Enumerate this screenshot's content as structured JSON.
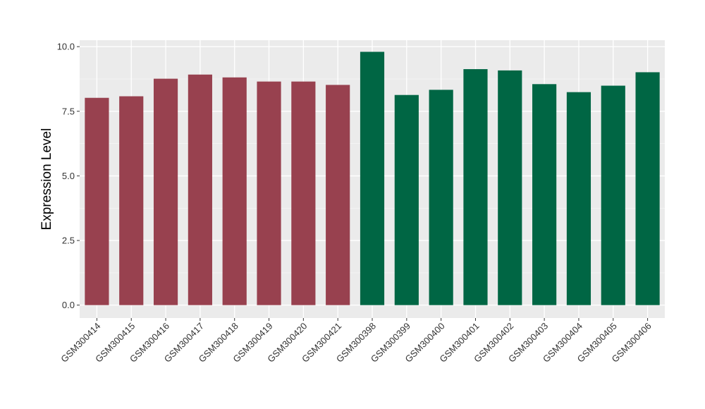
{
  "chart_data": {
    "type": "bar",
    "title": "",
    "xlabel": "",
    "ylabel": "Expression Level",
    "categories": [
      "GSM300414",
      "GSM300415",
      "GSM300416",
      "GSM300417",
      "GSM300418",
      "GSM300419",
      "GSM300420",
      "GSM300421",
      "GSM300398",
      "GSM300399",
      "GSM300400",
      "GSM300401",
      "GSM300402",
      "GSM300403",
      "GSM300404",
      "GSM300405",
      "GSM300406"
    ],
    "values": [
      8.02,
      8.08,
      8.76,
      8.92,
      8.81,
      8.65,
      8.65,
      8.52,
      9.8,
      8.13,
      8.33,
      9.13,
      9.08,
      8.55,
      8.24,
      8.49,
      9.01
    ],
    "groups": [
      0,
      0,
      0,
      0,
      0,
      0,
      0,
      0,
      1,
      1,
      1,
      1,
      1,
      1,
      1,
      1,
      1
    ],
    "group_colors": [
      "#98414F",
      "#006644"
    ],
    "ylim": [
      -0.5,
      10.25
    ],
    "yticks": [
      0.0,
      2.5,
      5.0,
      7.5,
      10.0
    ],
    "ytick_labels": [
      "0.0",
      "2.5",
      "5.0",
      "7.5",
      "10.0"
    ],
    "grid": true,
    "legend": "none",
    "panel_background": "#EBEBEB"
  }
}
